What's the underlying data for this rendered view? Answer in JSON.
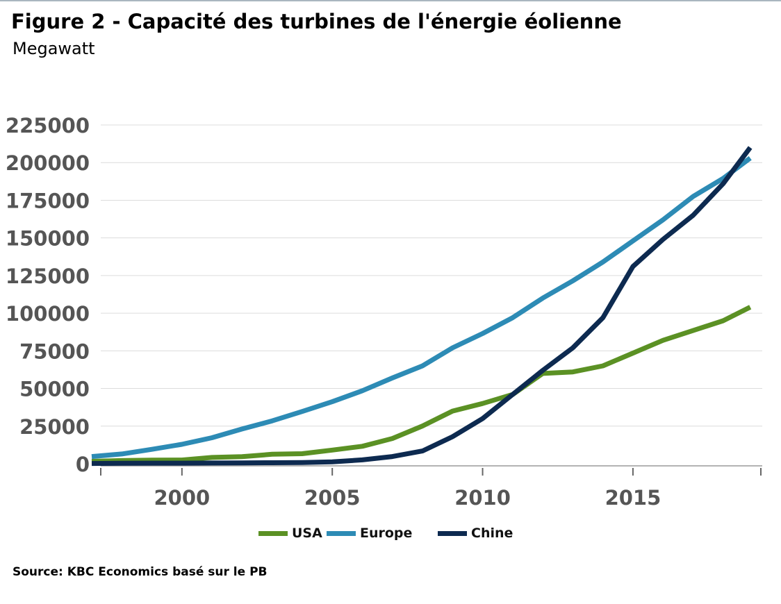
{
  "chart_data": {
    "type": "line",
    "title": "Figure 2 - Capacité des turbines de l'énergie éolienne",
    "subtitle": "Megawatt",
    "ylabel": "Megawatt",
    "xlabel": "",
    "ylim": [
      0,
      225000
    ],
    "yticks": [
      0,
      25000,
      50000,
      75000,
      100000,
      125000,
      150000,
      175000,
      200000,
      225000
    ],
    "ytick_labels": [
      "0",
      "25000",
      "50000",
      "75000",
      "100000",
      "125000",
      "150000",
      "175000",
      "200000",
      "225000"
    ],
    "xticks": [
      2000,
      2005,
      2010,
      2015
    ],
    "xtick_labels": [
      "2000",
      "2005",
      "2010",
      "2015"
    ],
    "x": [
      1997,
      1998,
      1999,
      2000,
      2001,
      2002,
      2003,
      2004,
      2005,
      2006,
      2007,
      2008,
      2009,
      2010,
      2011,
      2012,
      2013,
      2014,
      2015,
      2016,
      2017,
      2018
    ],
    "series": [
      {
        "name": "USA",
        "color": "#5b9124",
        "values": [
          1600,
          2100,
          2400,
          2500,
          4200,
          4700,
          6300,
          6700,
          9100,
          11600,
          16800,
          25100,
          35000,
          40000,
          46000,
          60000,
          61000,
          65000,
          73500,
          82000,
          88500,
          95000
        ]
      },
      {
        "name": "Europe",
        "color": "#2d8bb5",
        "values": [
          4800,
          6500,
          9600,
          12900,
          17300,
          23100,
          28500,
          34700,
          41200,
          48500,
          57000,
          65000,
          77000,
          86500,
          97000,
          110000,
          121500,
          134000,
          148000,
          162000,
          177500,
          189500
        ]
      },
      {
        "name": "Chine",
        "color": "#0d2a50",
        "values": [
          200,
          300,
          400,
          400,
          500,
          600,
          700,
          800,
          1300,
          2600,
          4800,
          8500,
          18000,
          30000,
          46000,
          62000,
          77000,
          97000,
          131000,
          149000,
          165000,
          186000
        ]
      }
    ],
    "series_end": {
      "x": 2018.9,
      "values": {
        "USA": 104000,
        "Europe": 203000,
        "Chine": 210000
      }
    },
    "legend": [
      "USA",
      "Europe",
      "Chine"
    ],
    "legend_position": "bottom-center",
    "grid": true
  },
  "header": {
    "title": "Figure 2 - Capacité des turbines de l'énergie éolienne",
    "subtitle": "Megawatt"
  },
  "legend": {
    "items": [
      {
        "label": "USA",
        "color": "#5b9124"
      },
      {
        "label": "Europe",
        "color": "#2d8bb5"
      },
      {
        "label": "Chine",
        "color": "#0d2a50"
      }
    ]
  },
  "footer": {
    "source": "Source: KBC Economics basé sur le PB"
  }
}
